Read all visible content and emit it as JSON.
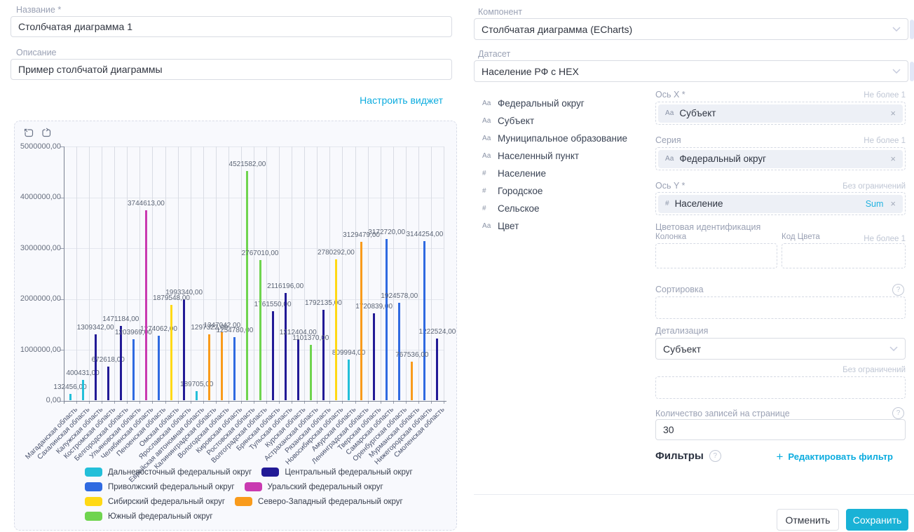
{
  "left_panel": {
    "name_label": "Название *",
    "name_value": "Столбчатая диаграмма 1",
    "description_label": "Описание",
    "description_value": "Пример столбчатой диаграммы",
    "configure_link": "Настроить виджет"
  },
  "right_panel": {
    "component_label": "Компонент",
    "component_value": "Столбчатая диаграмма (ECharts)",
    "dataset_label": "Датасет",
    "dataset_value": "Население РФ с HEX",
    "fields": [
      {
        "type": "Аа",
        "label": "Федеральный округ"
      },
      {
        "type": "Аа",
        "label": "Субъект"
      },
      {
        "type": "Аа",
        "label": "Муниципальное образование"
      },
      {
        "type": "Аа",
        "label": "Населенный пункт"
      },
      {
        "type": "#",
        "label": "Население"
      },
      {
        "type": "#",
        "label": "Городское"
      },
      {
        "type": "#",
        "label": "Сельское"
      },
      {
        "type": "Аа",
        "label": "Цвет"
      }
    ],
    "axis_x": {
      "label": "Ось X *",
      "limit": "Не более 1",
      "chip_icon": "Аа",
      "chip_label": "Субъект"
    },
    "series_field": {
      "label": "Серия",
      "limit": "Не более 1",
      "chip_icon": "Аа",
      "chip_label": "Федеральный округ"
    },
    "axis_y": {
      "label": "Ось Y *",
      "limit": "Без ограничений",
      "chip_icon": "#",
      "chip_label": "Население",
      "agg": "Sum"
    },
    "color_ident": {
      "label": "Цветовая идентификация",
      "col1_label": "Колонка",
      "col2_label": "Код Цвета",
      "limit": "Не более 1"
    },
    "sorting": {
      "label": "Сортировка"
    },
    "detail": {
      "label": "Детализация",
      "value": "Субъект",
      "limit": "Без ограничений"
    },
    "page_size": {
      "label": "Количество записей на странице",
      "value": "30"
    },
    "filters": {
      "label": "Фильтры",
      "edit_link": "Редактировать фильтр",
      "plus": "+"
    },
    "cancel_label": "Отменить",
    "save_label": "Сохранить"
  },
  "chart_data": {
    "type": "bar",
    "title": "",
    "ylabel": "",
    "xlabel": "",
    "ylim": [
      0,
      5000000
    ],
    "grid": true,
    "legend_position": "bottom",
    "x_label_rotation": -45,
    "value_label_format": "#,00",
    "y_ticks": [
      "5000000,00",
      "4000000,00",
      "3000000,00",
      "2000000,00",
      "1000000,00",
      "0,00"
    ],
    "series": [
      {
        "name": "Дальневосточный федеральный округ",
        "color": "#23bfd9"
      },
      {
        "name": "Центральный федеральный округ",
        "color": "#221a96"
      },
      {
        "name": "Приволжский федеральный округ",
        "color": "#2f6ae1"
      },
      {
        "name": "Уральский федеральный округ",
        "color": "#c93ab1"
      },
      {
        "name": "Сибирский федеральный округ",
        "color": "#ffd915"
      },
      {
        "name": "Северо-Западный федеральный округ",
        "color": "#f99b1c"
      },
      {
        "name": "Южный федеральный округ",
        "color": "#6fd44f"
      }
    ],
    "points": [
      {
        "category": "Магаданская область",
        "value": 132456,
        "series": "Дальневосточный федеральный округ"
      },
      {
        "category": "Сахалинская область",
        "value": 400431,
        "series": "Дальневосточный федеральный округ"
      },
      {
        "category": "Калужская область",
        "value": 1309342,
        "series": "Центральный федеральный округ"
      },
      {
        "category": "Костромская область",
        "value": 672618,
        "series": "Центральный федеральный округ"
      },
      {
        "category": "Белгородская область",
        "value": 1471184,
        "series": "Центральный федеральный округ"
      },
      {
        "category": "Ульяновская область",
        "value": 1203969,
        "series": "Приволжский федеральный округ"
      },
      {
        "category": "Челябинская область",
        "value": 3744613,
        "series": "Уральский федеральный округ"
      },
      {
        "category": "Пензенская область",
        "value": 1274062,
        "series": "Приволжский федеральный округ"
      },
      {
        "category": "Омская область",
        "value": 1879548,
        "series": "Сибирский федеральный округ"
      },
      {
        "category": "Ярославская область",
        "value": 1993340,
        "series": "Центральный федеральный округ"
      },
      {
        "category": "Еврейская автономная область",
        "value": 189705,
        "series": "Дальневосточный федеральный округ"
      },
      {
        "category": "Калининградская область",
        "value": 1297322,
        "series": "Северо-Западный федеральный округ"
      },
      {
        "category": "Вологодская область",
        "value": 1347042,
        "series": "Северо-Западный федеральный округ"
      },
      {
        "category": "Кировская область",
        "value": 1254780,
        "series": "Приволжский федеральный округ"
      },
      {
        "category": "Ростовская область",
        "value": 4521582,
        "series": "Южный федеральный округ"
      },
      {
        "category": "Волгоградская область",
        "value": 2767010,
        "series": "Южный федеральный округ"
      },
      {
        "category": "Брянская область",
        "value": 1761550,
        "series": "Центральный федеральный округ"
      },
      {
        "category": "Тульская область",
        "value": 2116196,
        "series": "Центральный федеральный округ"
      },
      {
        "category": "Курская область",
        "value": 1212404,
        "series": "Центральный федеральный округ"
      },
      {
        "category": "Астраханская область",
        "value": 1101370,
        "series": "Южный федеральный округ"
      },
      {
        "category": "Рязанская область",
        "value": 1792135,
        "series": "Центральный федеральный округ"
      },
      {
        "category": "Новосибирская область",
        "value": 2780292,
        "series": "Сибирский федеральный округ"
      },
      {
        "category": "Амурская область",
        "value": 809994,
        "series": "Дальневосточный федеральный округ"
      },
      {
        "category": "Ленинградская область",
        "value": 3129479,
        "series": "Северо-Западный федеральный округ"
      },
      {
        "category": "Тверская область",
        "value": 1720839,
        "series": "Центральный федеральный округ"
      },
      {
        "category": "Самарская область",
        "value": 3172720,
        "series": "Приволжский федеральный округ"
      },
      {
        "category": "Оренбургская область",
        "value": 1924578,
        "series": "Приволжский федеральный округ"
      },
      {
        "category": "Мурманская область",
        "value": 767536,
        "series": "Северо-Западный федеральный округ"
      },
      {
        "category": "Нижегородская область",
        "value": 3144254,
        "series": "Приволжский федеральный округ"
      },
      {
        "category": "Смоленская область",
        "value": 1222524,
        "series": "Центральный федеральный округ"
      }
    ]
  }
}
